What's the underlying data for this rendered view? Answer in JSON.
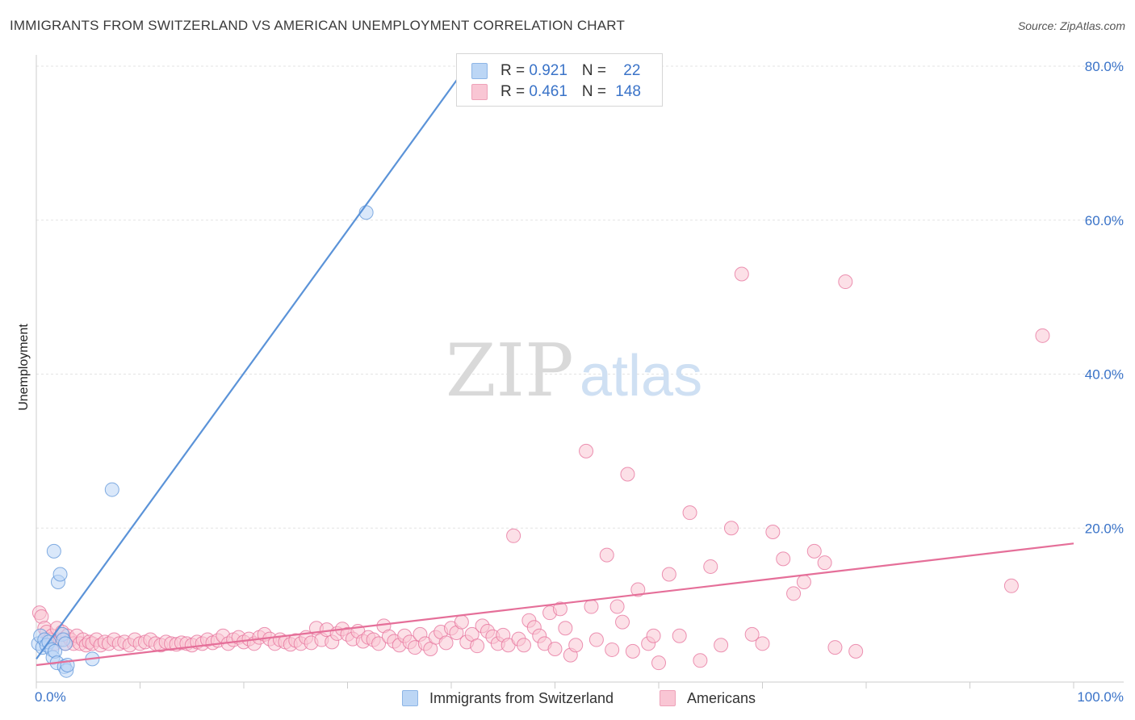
{
  "title": "IMMIGRANTS FROM SWITZERLAND VS AMERICAN UNEMPLOYMENT CORRELATION CHART",
  "source": "Source: ZipAtlas.com",
  "watermark": {
    "part1": "ZIP",
    "part2": "atlas"
  },
  "legend": {
    "rows": [
      {
        "r_label": "R = ",
        "r_value": "0.921",
        "n_label": "N = ",
        "n_value": "22",
        "color": "#a9c9f0"
      },
      {
        "r_label": "R = ",
        "r_value": "0.461",
        "n_label": "N = ",
        "n_value": "148",
        "color": "#f7b6c9"
      }
    ]
  },
  "bottom_legend": [
    {
      "label": "Immigrants from Switzerland",
      "color": "#bcd6f5"
    },
    {
      "label": "Americans",
      "color": "#f9c6d4"
    }
  ],
  "chart_data": {
    "type": "scatter",
    "ylabel": "Unemployment",
    "xlabel": "",
    "xlim": [
      0,
      100
    ],
    "ylim": [
      0,
      80
    ],
    "x_tick_labels": [
      "0.0%",
      "100.0%"
    ],
    "y_tick_labels": [
      "20.0%",
      "40.0%",
      "60.0%",
      "80.0%"
    ],
    "y_ticks": [
      20,
      40,
      60,
      80
    ],
    "grid": true,
    "series": [
      {
        "name": "Immigrants from Switzerland",
        "color": "#5b93d8",
        "fill": "#bcd6f5",
        "points": [
          [
            0.2,
            5.0
          ],
          [
            0.4,
            6.0
          ],
          [
            0.6,
            4.5
          ],
          [
            0.8,
            5.5
          ],
          [
            1.0,
            4.8
          ],
          [
            1.2,
            5.2
          ],
          [
            1.5,
            4.2
          ],
          [
            1.6,
            3.2
          ],
          [
            1.7,
            17.0
          ],
          [
            1.8,
            4.0
          ],
          [
            2.0,
            2.5
          ],
          [
            2.1,
            13.0
          ],
          [
            2.3,
            14.0
          ],
          [
            2.5,
            6.2
          ],
          [
            2.6,
            5.5
          ],
          [
            2.7,
            2.0
          ],
          [
            2.8,
            5.0
          ],
          [
            2.9,
            1.5
          ],
          [
            3.0,
            2.2
          ],
          [
            5.4,
            3.0
          ],
          [
            7.3,
            25.0
          ],
          [
            31.8,
            61.0
          ]
        ],
        "trendline": {
          "x": [
            0,
            41.5
          ],
          "y": [
            3.0,
            80.0
          ]
        }
      },
      {
        "name": "Americans",
        "color": "#e56f99",
        "fill": "#f9c6d4",
        "points": [
          [
            0.3,
            9.0
          ],
          [
            0.5,
            8.5
          ],
          [
            0.8,
            7.0
          ],
          [
            1.0,
            6.5
          ],
          [
            1.2,
            5.5
          ],
          [
            1.5,
            6.0
          ],
          [
            1.8,
            5.0
          ],
          [
            2.0,
            7.0
          ],
          [
            2.3,
            5.5
          ],
          [
            2.5,
            6.5
          ],
          [
            2.8,
            5.0
          ],
          [
            3.0,
            6.0
          ],
          [
            3.3,
            5.5
          ],
          [
            3.6,
            5.0
          ],
          [
            3.9,
            6.0
          ],
          [
            4.2,
            5.0
          ],
          [
            4.5,
            5.5
          ],
          [
            4.8,
            4.8
          ],
          [
            5.1,
            5.2
          ],
          [
            5.4,
            5.0
          ],
          [
            5.8,
            5.5
          ],
          [
            6.2,
            4.8
          ],
          [
            6.6,
            5.2
          ],
          [
            7.0,
            5.0
          ],
          [
            7.5,
            5.5
          ],
          [
            8.0,
            5.0
          ],
          [
            8.5,
            5.2
          ],
          [
            9.0,
            4.8
          ],
          [
            9.5,
            5.5
          ],
          [
            10.0,
            5.0
          ],
          [
            10.5,
            5.2
          ],
          [
            11.0,
            5.5
          ],
          [
            11.5,
            5.0
          ],
          [
            12.0,
            4.8
          ],
          [
            12.5,
            5.2
          ],
          [
            13.0,
            5.0
          ],
          [
            13.5,
            4.9
          ],
          [
            14.0,
            5.1
          ],
          [
            14.5,
            5.0
          ],
          [
            15.0,
            4.8
          ],
          [
            15.5,
            5.2
          ],
          [
            16.0,
            5.0
          ],
          [
            16.5,
            5.5
          ],
          [
            17.0,
            5.1
          ],
          [
            17.5,
            5.4
          ],
          [
            18.0,
            6.0
          ],
          [
            18.5,
            5.0
          ],
          [
            19.0,
            5.5
          ],
          [
            19.5,
            5.8
          ],
          [
            20.0,
            5.2
          ],
          [
            20.5,
            5.6
          ],
          [
            21.0,
            5.0
          ],
          [
            21.5,
            5.8
          ],
          [
            22.0,
            6.2
          ],
          [
            22.5,
            5.6
          ],
          [
            23.0,
            5.0
          ],
          [
            23.5,
            5.5
          ],
          [
            24.0,
            5.2
          ],
          [
            24.5,
            4.9
          ],
          [
            25.0,
            5.4
          ],
          [
            25.5,
            5.0
          ],
          [
            26.0,
            5.8
          ],
          [
            26.5,
            5.1
          ],
          [
            27.0,
            7.0
          ],
          [
            27.5,
            5.5
          ],
          [
            28.0,
            6.8
          ],
          [
            28.5,
            5.2
          ],
          [
            29.0,
            6.3
          ],
          [
            29.5,
            6.9
          ],
          [
            30.0,
            6.2
          ],
          [
            30.5,
            5.6
          ],
          [
            31.0,
            6.6
          ],
          [
            31.5,
            5.3
          ],
          [
            32.0,
            5.8
          ],
          [
            32.5,
            5.5
          ],
          [
            33.0,
            5.0
          ],
          [
            33.5,
            7.3
          ],
          [
            34.0,
            5.9
          ],
          [
            34.5,
            5.3
          ],
          [
            35.0,
            4.8
          ],
          [
            35.5,
            6.0
          ],
          [
            36.0,
            5.2
          ],
          [
            36.5,
            4.5
          ],
          [
            37.0,
            6.2
          ],
          [
            37.5,
            5.0
          ],
          [
            38.0,
            4.3
          ],
          [
            38.5,
            5.8
          ],
          [
            39.0,
            6.5
          ],
          [
            39.5,
            5.1
          ],
          [
            40.0,
            7.0
          ],
          [
            40.5,
            6.4
          ],
          [
            41.0,
            7.8
          ],
          [
            41.5,
            5.2
          ],
          [
            42.0,
            6.2
          ],
          [
            42.5,
            4.7
          ],
          [
            43.0,
            7.3
          ],
          [
            43.5,
            6.6
          ],
          [
            44.0,
            5.9
          ],
          [
            44.5,
            5.0
          ],
          [
            45.0,
            6.1
          ],
          [
            45.5,
            4.8
          ],
          [
            46.0,
            19.0
          ],
          [
            46.5,
            5.6
          ],
          [
            47.0,
            4.8
          ],
          [
            47.5,
            8.0
          ],
          [
            48.0,
            7.1
          ],
          [
            48.5,
            6.0
          ],
          [
            49.0,
            5.0
          ],
          [
            49.5,
            9.0
          ],
          [
            50.0,
            4.3
          ],
          [
            50.5,
            9.5
          ],
          [
            51.0,
            7.0
          ],
          [
            51.5,
            3.5
          ],
          [
            52.0,
            4.8
          ],
          [
            53.0,
            30.0
          ],
          [
            53.5,
            9.8
          ],
          [
            54.0,
            5.5
          ],
          [
            55.0,
            16.5
          ],
          [
            55.5,
            4.2
          ],
          [
            56.0,
            9.8
          ],
          [
            56.5,
            7.8
          ],
          [
            57.0,
            27.0
          ],
          [
            57.5,
            4.0
          ],
          [
            58.0,
            12.0
          ],
          [
            59.0,
            5.0
          ],
          [
            59.5,
            6.0
          ],
          [
            60.0,
            2.5
          ],
          [
            61.0,
            14.0
          ],
          [
            62.0,
            6.0
          ],
          [
            63.0,
            22.0
          ],
          [
            64.0,
            2.8
          ],
          [
            65.0,
            15.0
          ],
          [
            66.0,
            4.8
          ],
          [
            67.0,
            20.0
          ],
          [
            68.0,
            53.0
          ],
          [
            69.0,
            6.2
          ],
          [
            70.0,
            5.0
          ],
          [
            71.0,
            19.5
          ],
          [
            72.0,
            16.0
          ],
          [
            73.0,
            11.5
          ],
          [
            74.0,
            13.0
          ],
          [
            75.0,
            17.0
          ],
          [
            76.0,
            15.5
          ],
          [
            77.0,
            4.5
          ],
          [
            78.0,
            52.0
          ],
          [
            79.0,
            4.0
          ],
          [
            94.0,
            12.5
          ],
          [
            97.0,
            45.0
          ]
        ],
        "trendline": {
          "x": [
            0,
            100
          ],
          "y": [
            2.2,
            18.0
          ]
        }
      }
    ]
  }
}
